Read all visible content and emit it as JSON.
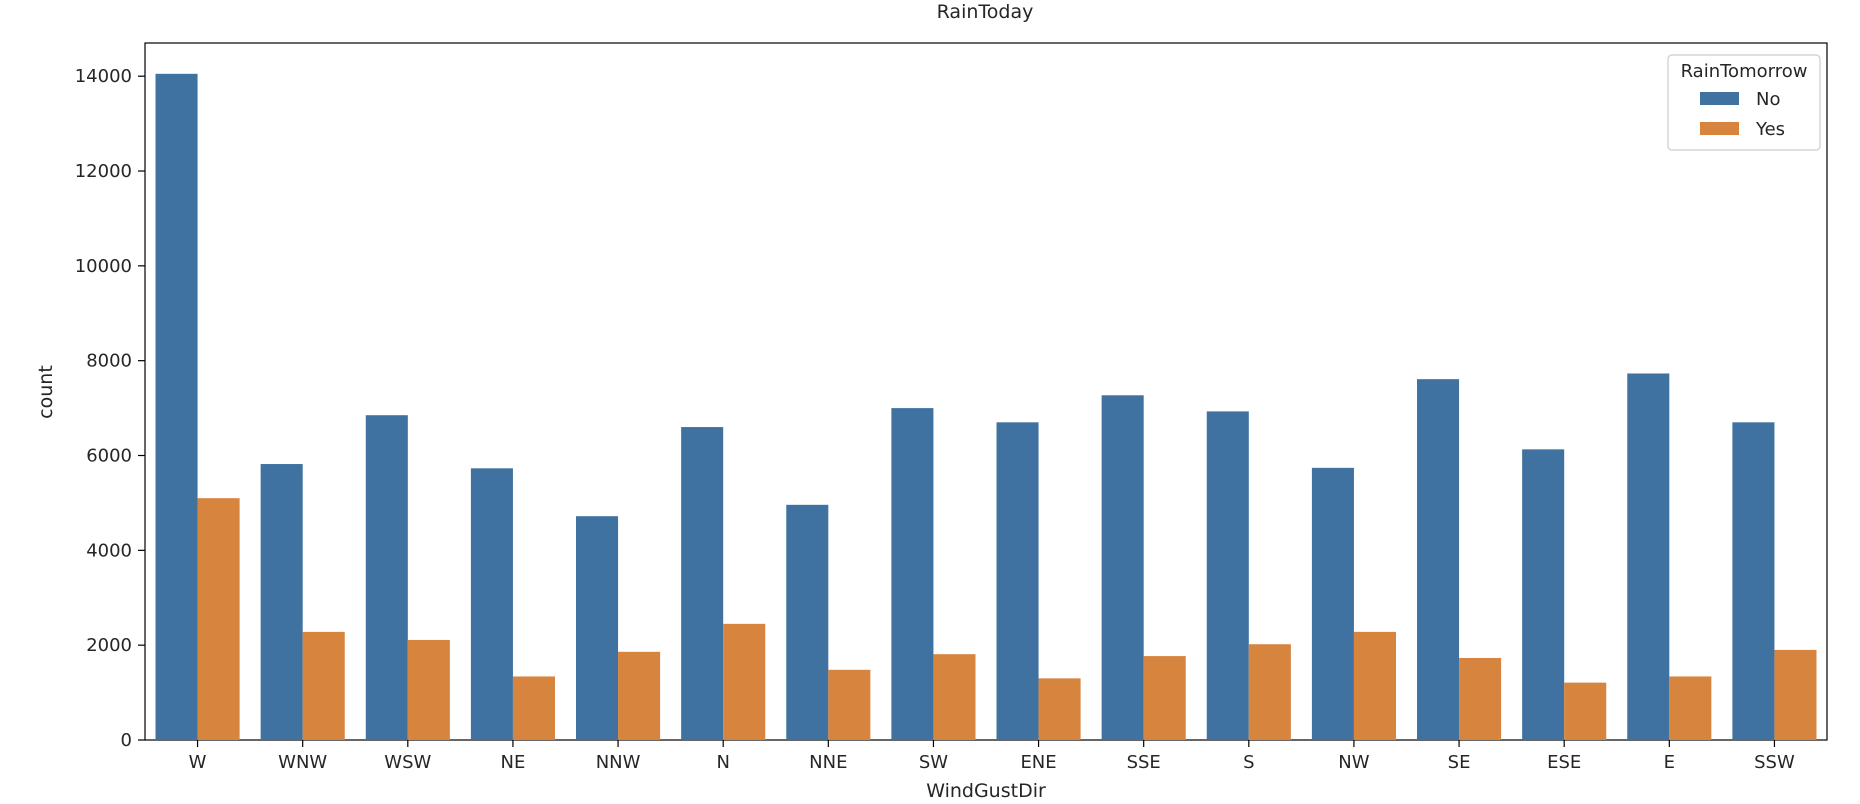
{
  "chart_data": {
    "type": "bar",
    "title": "RainToday",
    "xlabel": "WindGustDir",
    "ylabel": "count",
    "categories": [
      "W",
      "WNW",
      "WSW",
      "NE",
      "NNW",
      "N",
      "NNE",
      "SW",
      "ENE",
      "SSE",
      "S",
      "NW",
      "SE",
      "ESE",
      "E",
      "SSW"
    ],
    "series": [
      {
        "name": "No",
        "color": "#3f72a0",
        "values": [
          14050,
          5820,
          6850,
          5730,
          4720,
          6600,
          4960,
          7000,
          6700,
          7270,
          6930,
          5740,
          7610,
          6130,
          7730,
          6700
        ]
      },
      {
        "name": "Yes",
        "color": "#d7843e",
        "values": [
          5100,
          2280,
          2110,
          1340,
          1860,
          2450,
          1480,
          1810,
          1300,
          1770,
          2020,
          2280,
          1730,
          1210,
          1340,
          1900
        ]
      }
    ],
    "ylim": [
      0,
      14700
    ],
    "yticks": [
      0,
      2000,
      4000,
      6000,
      8000,
      10000,
      12000,
      14000
    ],
    "grid": false,
    "legend": {
      "title": "RainTomorrow",
      "placement": "top-right"
    }
  }
}
